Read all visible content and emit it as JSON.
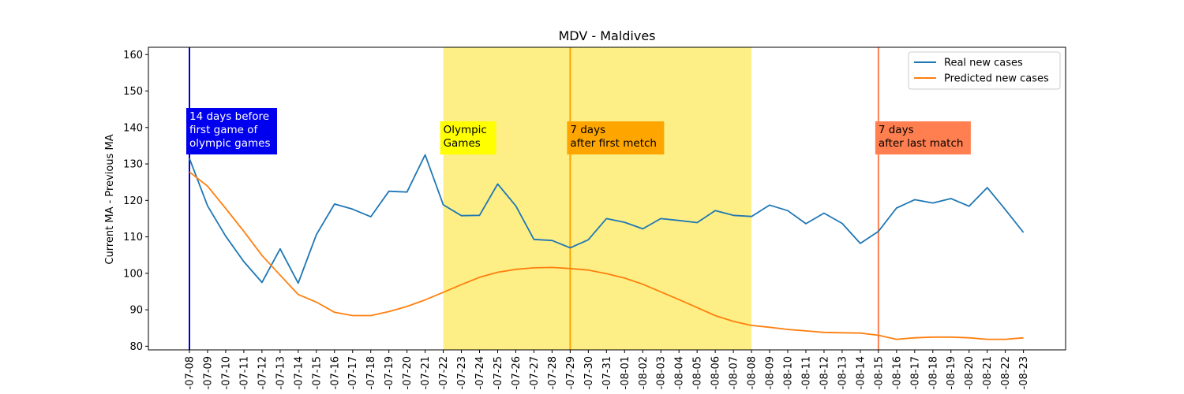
{
  "chart_data": {
    "type": "line",
    "title": "MDV - Maldives",
    "xlabel": "",
    "ylabel": "Current MA - Previous MA",
    "ylim": [
      79,
      162
    ],
    "yticks": [
      80,
      90,
      100,
      110,
      120,
      130,
      140,
      150,
      160
    ],
    "grid": false,
    "legend_position": "top-right",
    "x": [
      "2021-07-08",
      "2021-07-09",
      "2021-07-10",
      "2021-07-11",
      "2021-07-12",
      "2021-07-13",
      "2021-07-14",
      "2021-07-15",
      "2021-07-16",
      "2021-07-17",
      "2021-07-18",
      "2021-07-19",
      "2021-07-20",
      "2021-07-21",
      "2021-07-22",
      "2021-07-23",
      "2021-07-24",
      "2021-07-25",
      "2021-07-26",
      "2021-07-27",
      "2021-07-28",
      "2021-07-29",
      "2021-07-30",
      "2021-07-31",
      "2021-08-01",
      "2021-08-02",
      "2021-08-03",
      "2021-08-04",
      "2021-08-05",
      "2021-08-06",
      "2021-08-07",
      "2021-08-08",
      "2021-08-09",
      "2021-08-10",
      "2021-08-11",
      "2021-08-12",
      "2021-08-13",
      "2021-08-14",
      "2021-08-15",
      "2021-08-16",
      "2021-08-17",
      "2021-08-18",
      "2021-08-19",
      "2021-08-20",
      "2021-08-21",
      "2021-08-22",
      "2021-08-23"
    ],
    "x_tick_labels": [
      "-07-08",
      "-07-09",
      "-07-10",
      "-07-11",
      "-07-12",
      "-07-13",
      "-07-14",
      "-07-15",
      "-07-16",
      "-07-17",
      "-07-18",
      "-07-19",
      "-07-20",
      "-07-21",
      "-07-22",
      "-07-23",
      "-07-24",
      "-07-25",
      "-07-26",
      "-07-27",
      "-07-28",
      "-07-29",
      "-07-30",
      "-07-31",
      "-08-01",
      "-08-02",
      "-08-03",
      "-08-04",
      "-08-05",
      "-08-06",
      "-08-07",
      "-08-08",
      "-08-09",
      "-08-10",
      "-08-11",
      "-08-12",
      "-08-13",
      "-08-14",
      "-08-15",
      "-08-16",
      "-08-17",
      "-08-18",
      "-08-19",
      "-08-20",
      "-08-21",
      "-08-22",
      "-08-23"
    ],
    "series": [
      {
        "name": "Real new cases",
        "color": "#1f77b4",
        "values": [
          131.5,
          118.5,
          110.2,
          103.2,
          97.5,
          106.7,
          97.3,
          110.6,
          119.0,
          117.6,
          115.5,
          122.5,
          122.3,
          132.5,
          118.8,
          115.8,
          115.9,
          124.5,
          118.5,
          109.3,
          109.0,
          107.0,
          109.2,
          115.0,
          114.0,
          112.2,
          115.0,
          114.5,
          113.9,
          117.2,
          115.9,
          115.6,
          118.7,
          117.2,
          113.6,
          116.5,
          113.7,
          108.2,
          111.5,
          117.9,
          120.2,
          119.3,
          120.5,
          118.4,
          123.5,
          117.5,
          111.2
        ]
      },
      {
        "name": "Predicted new cases",
        "color": "#ff7f0e",
        "values": [
          127.8,
          123.9,
          117.8,
          111.5,
          104.9,
          99.5,
          94.2,
          92.1,
          89.3,
          88.4,
          88.4,
          89.5,
          90.9,
          92.7,
          94.8,
          96.9,
          98.9,
          100.3,
          101.1,
          101.5,
          101.6,
          101.3,
          100.9,
          99.9,
          98.7,
          97.0,
          94.9,
          92.8,
          90.6,
          88.4,
          86.8,
          85.7,
          85.2,
          84.6,
          84.2,
          83.8,
          83.7,
          83.6,
          83.0,
          81.9,
          82.3,
          82.5,
          82.5,
          82.3,
          81.9,
          81.9,
          82.3
        ]
      }
    ],
    "shaded_region": {
      "from": "2021-07-22",
      "to": "2021-08-08",
      "color": "#fdef86"
    },
    "vertical_markers": [
      {
        "x": "2021-07-08",
        "color": "#0000cd",
        "label_lines": [
          "14 days before",
          "first game of",
          "olympic games"
        ],
        "label_bg": "#0000ee",
        "label_color": "#ffffff"
      },
      {
        "x": "2021-07-29",
        "color": "#ffa500",
        "label_lines": [
          "7 days",
          "after first metch"
        ],
        "label_bg": "#ffa500",
        "label_color": "#000000"
      },
      {
        "x": "2021-08-15",
        "color": "#ff7f50",
        "label_lines": [
          "7 days",
          "after last match"
        ],
        "label_bg": "#ff7f50",
        "label_color": "#000000"
      }
    ],
    "region_label": {
      "lines": [
        "Olympic",
        "Games"
      ],
      "bg": "#ffff00",
      "color": "#000000"
    }
  }
}
